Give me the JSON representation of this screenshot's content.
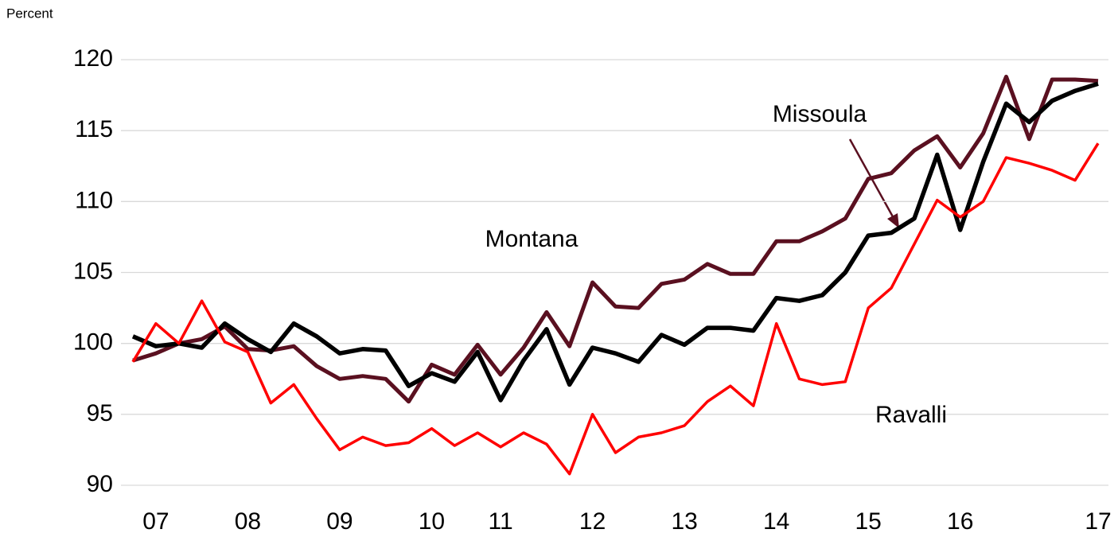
{
  "chart_data": {
    "type": "line",
    "y_axis_label": "Percent",
    "categories": [
      null,
      "07",
      null,
      null,
      null,
      "08",
      null,
      null,
      null,
      "09",
      null,
      null,
      null,
      "10",
      null,
      null,
      "11",
      null,
      null,
      null,
      "12",
      null,
      null,
      null,
      "13",
      null,
      null,
      null,
      "14",
      null,
      null,
      null,
      "15",
      null,
      null,
      null,
      "16",
      null,
      null,
      null,
      null,
      null,
      "17"
    ],
    "series": [
      {
        "name": "Missoula",
        "color": "#5a1020",
        "values": [
          98.8,
          99.3,
          100.0,
          100.3,
          101.2,
          99.6,
          99.5,
          99.8,
          98.4,
          97.5,
          97.7,
          97.5,
          95.9,
          98.5,
          97.8,
          99.9,
          97.8,
          99.7,
          102.2,
          99.8,
          104.3,
          102.6,
          102.5,
          104.2,
          104.5,
          105.6,
          104.9,
          104.9,
          107.2,
          107.2,
          107.9,
          108.8,
          111.6,
          112.0,
          113.6,
          114.6,
          112.4,
          114.8,
          118.8,
          114.4,
          118.6,
          118.6,
          118.5
        ]
      },
      {
        "name": "Montana",
        "color": "#000000",
        "values": [
          100.5,
          99.8,
          100.0,
          99.7,
          101.4,
          100.3,
          99.4,
          101.4,
          100.5,
          99.3,
          99.6,
          99.5,
          97.0,
          97.9,
          97.3,
          99.4,
          96.0,
          98.8,
          101.0,
          97.1,
          99.7,
          99.3,
          98.7,
          100.6,
          99.9,
          101.1,
          101.1,
          100.9,
          103.2,
          103.0,
          103.4,
          105.0,
          107.6,
          107.8,
          108.8,
          113.3,
          108.0,
          112.8,
          116.9,
          115.6,
          117.1,
          117.8,
          118.3
        ]
      },
      {
        "name": "Ravalli",
        "color": "#ff0000",
        "values": [
          98.7,
          101.4,
          100.0,
          103.0,
          100.1,
          99.4,
          95.8,
          97.1,
          94.7,
          92.5,
          93.4,
          92.8,
          93.0,
          94.0,
          92.8,
          93.7,
          92.7,
          93.7,
          92.9,
          90.8,
          95.0,
          92.3,
          93.4,
          93.7,
          94.2,
          95.9,
          97.0,
          95.6,
          101.4,
          97.5,
          97.1,
          97.3,
          102.5,
          103.9,
          107.0,
          110.1,
          108.9,
          110.0,
          113.1,
          112.7,
          112.2,
          111.5,
          114.1
        ]
      }
    ],
    "ylim": [
      90,
      120
    ],
    "yticks": [
      90,
      95,
      100,
      105,
      110,
      115,
      120
    ],
    "grid": true
  }
}
